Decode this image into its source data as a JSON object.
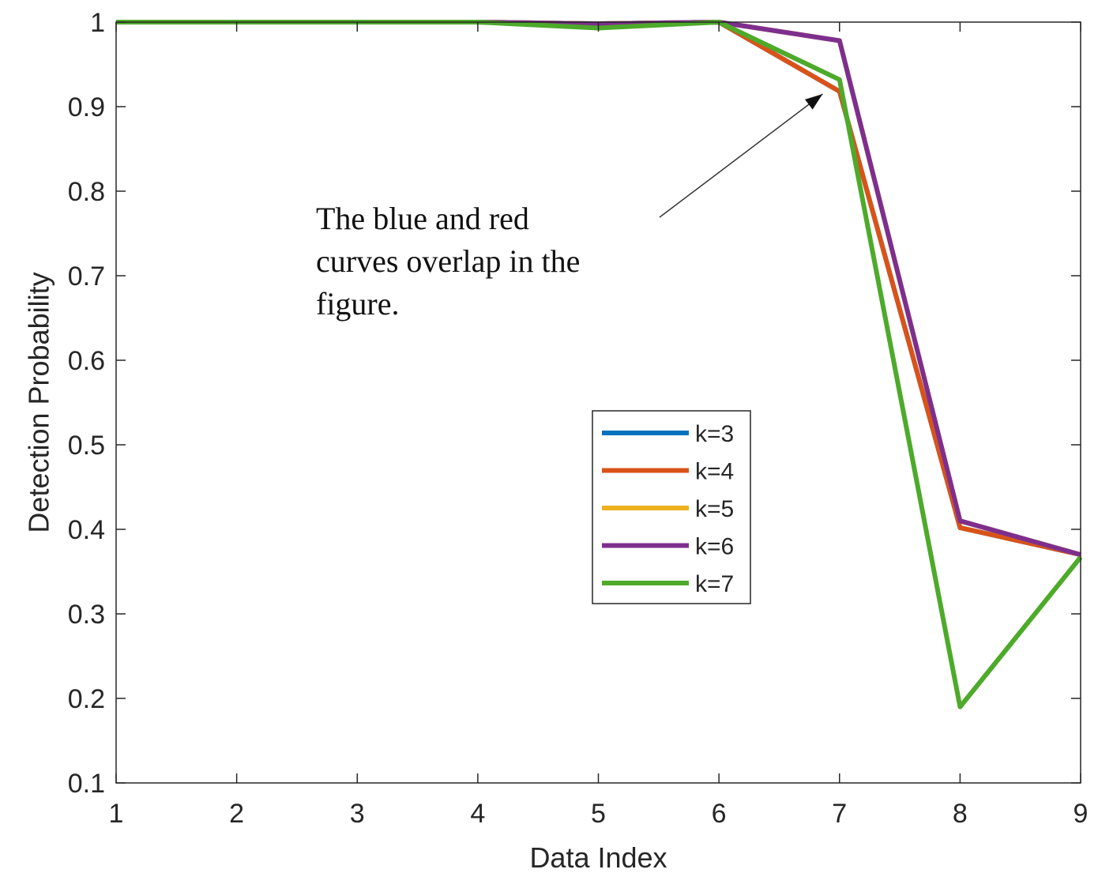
{
  "chart_data": {
    "type": "line",
    "title": "",
    "xlabel": "Data Index",
    "ylabel": "Detection Probability",
    "xlim": [
      1,
      9
    ],
    "ylim": [
      0.1,
      1
    ],
    "xticks": [
      "1",
      "2",
      "3",
      "4",
      "5",
      "6",
      "7",
      "8",
      "9"
    ],
    "yticks": [
      "0.1",
      "0.2",
      "0.3",
      "0.4",
      "0.5",
      "0.6",
      "0.7",
      "0.8",
      "0.9",
      "1"
    ],
    "grid": false,
    "legend_position": "center-right",
    "x": [
      1,
      2,
      3,
      4,
      5,
      6,
      7,
      8,
      9
    ],
    "series": [
      {
        "name": "k=3",
        "color": "#0072BD",
        "values": [
          1,
          1,
          1,
          1,
          0.998,
          1,
          0.918,
          0.402,
          0.37
        ]
      },
      {
        "name": "k=4",
        "color": "#D95319",
        "values": [
          1,
          1,
          1,
          1,
          0.998,
          1,
          0.918,
          0.402,
          0.37
        ]
      },
      {
        "name": "k=5",
        "color": "#EDB120",
        "values": [
          1,
          1,
          1,
          1,
          0.998,
          1,
          0.978,
          0.41,
          0.37
        ]
      },
      {
        "name": "k=6",
        "color": "#7E2F8E",
        "values": [
          1,
          1,
          1,
          1,
          0.998,
          1,
          0.978,
          0.41,
          0.37
        ]
      },
      {
        "name": "k=7",
        "color": "#4DAA2A",
        "values": [
          1,
          1,
          1,
          1,
          0.993,
          1,
          0.932,
          0.19,
          0.367
        ]
      }
    ],
    "annotations": [
      {
        "text_lines": [
          "The blue and red",
          "curves overlap in the",
          "figure."
        ],
        "arrow_to": [
          6.86,
          0.915
        ]
      }
    ]
  }
}
